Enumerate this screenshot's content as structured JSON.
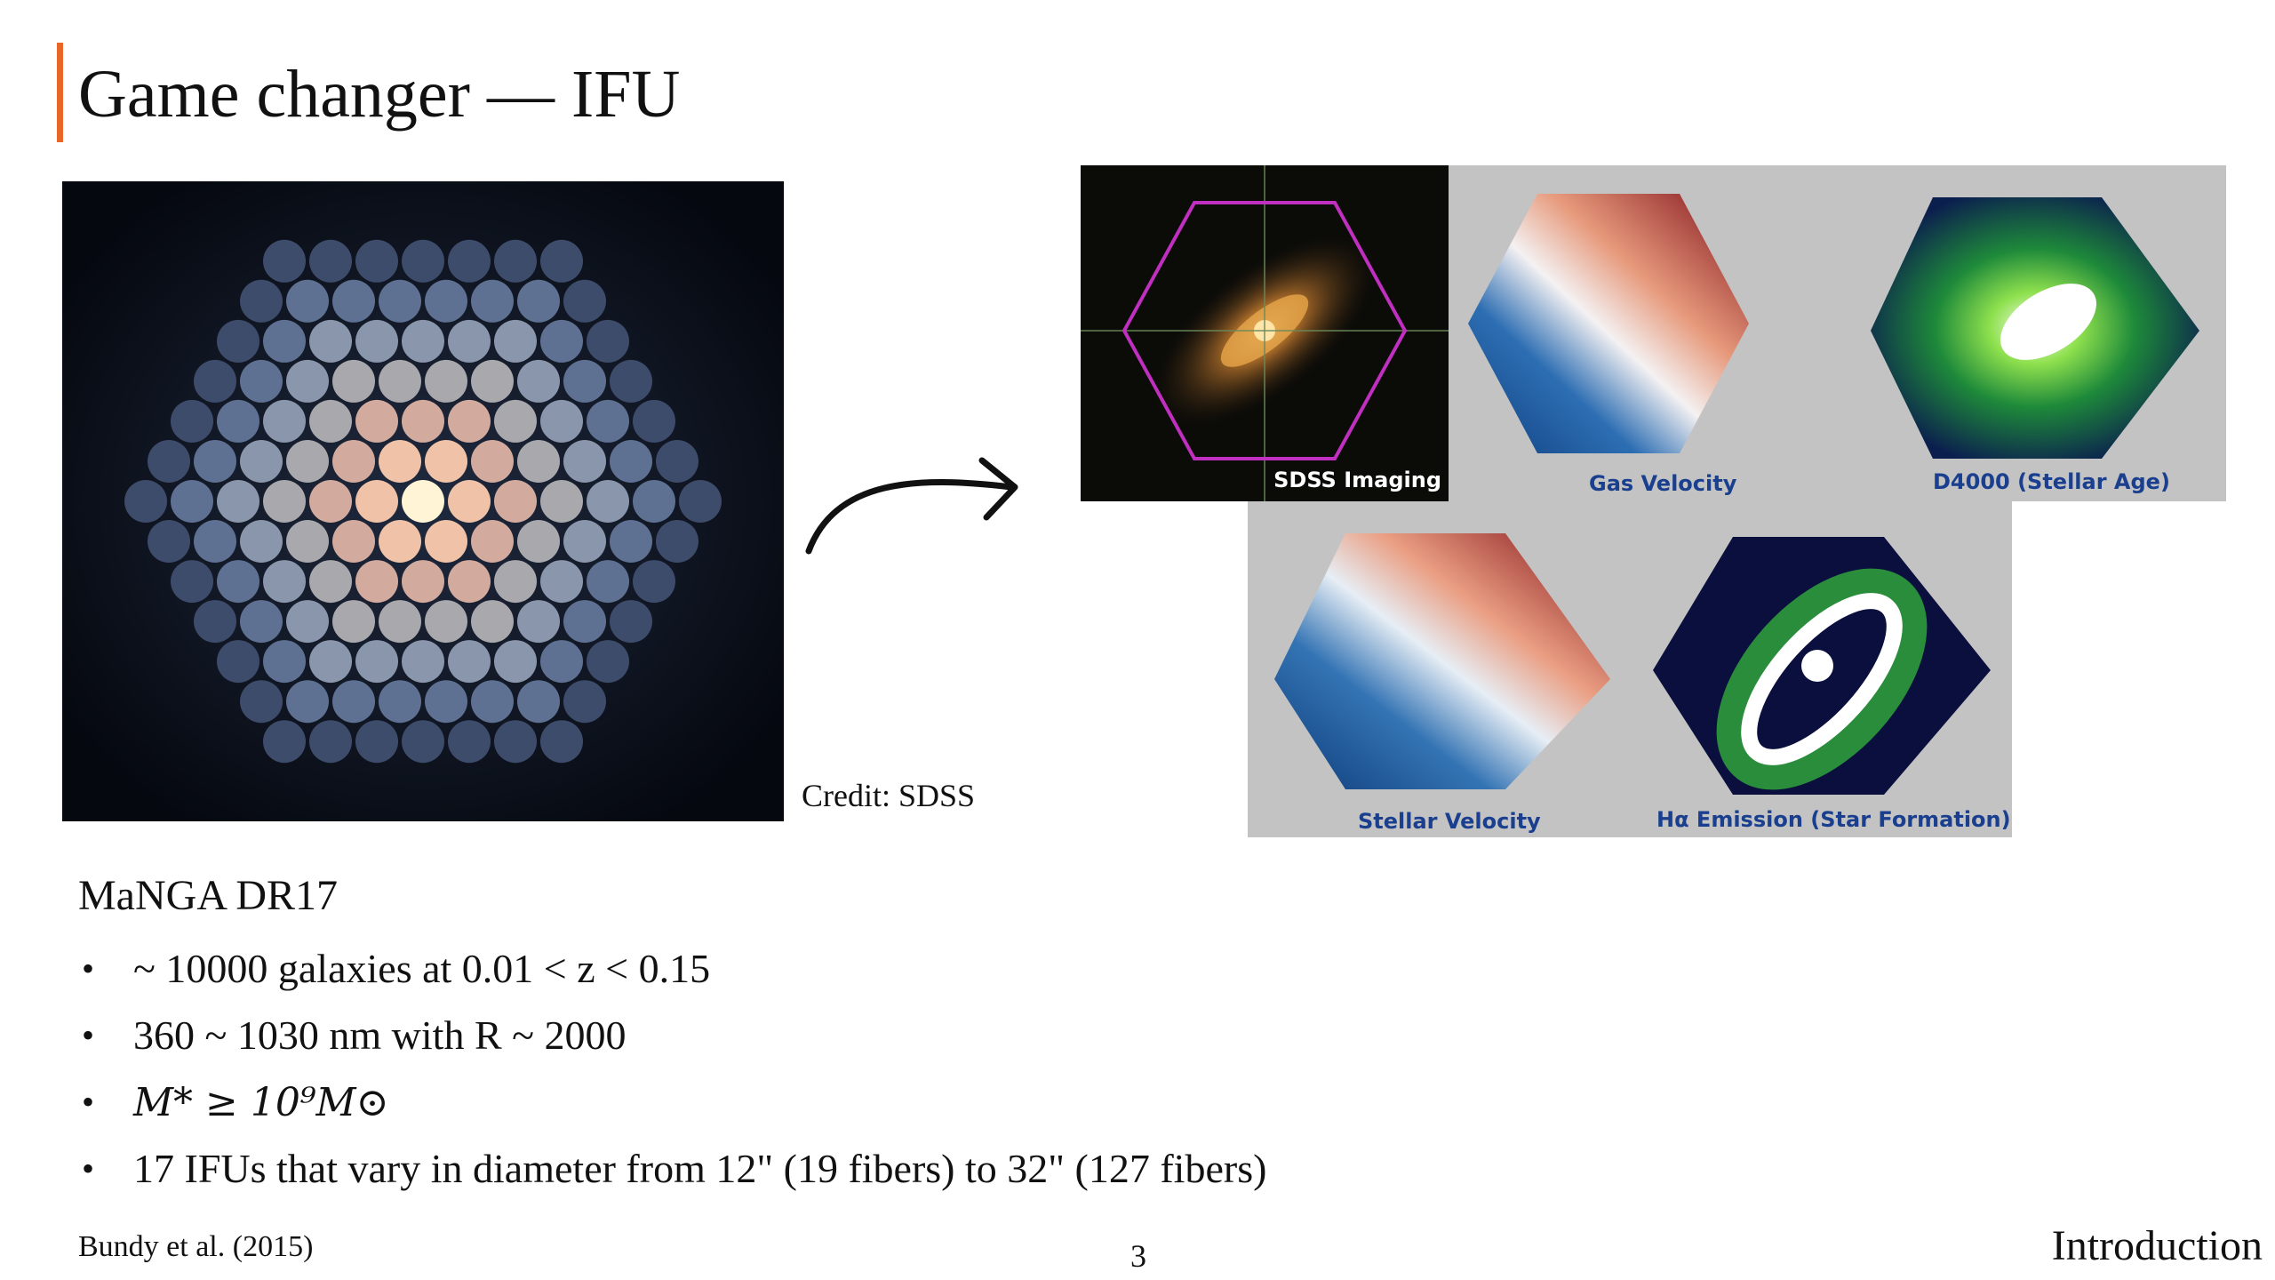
{
  "slide": {
    "title": "Game changer — IFU",
    "page_number": "3",
    "section": "Introduction",
    "accent_color": "#e8662a"
  },
  "figure": {
    "credit": "Credit: SDSS",
    "maps": {
      "sdss_imaging": "SDSS Imaging",
      "gas_velocity": "Gas Velocity",
      "d4000": "D4000 (Stellar Age)",
      "stellar_velocity": "Stellar Velocity",
      "halpha": "Hα Emission (Star Formation)"
    }
  },
  "content": {
    "heading": "MaNGA DR17",
    "bullets": [
      "~ 10000 galaxies at 0.01 < z < 0.15",
      "360 ~ 1030 nm with R ~ 2000",
      "M* ≥ 10⁹M⊙",
      "17 IFUs that vary in diameter from 12\" (19 fibers) to 32\" (127 fibers)"
    ]
  },
  "footer": {
    "citation": "Bundy et al. (2015)"
  }
}
